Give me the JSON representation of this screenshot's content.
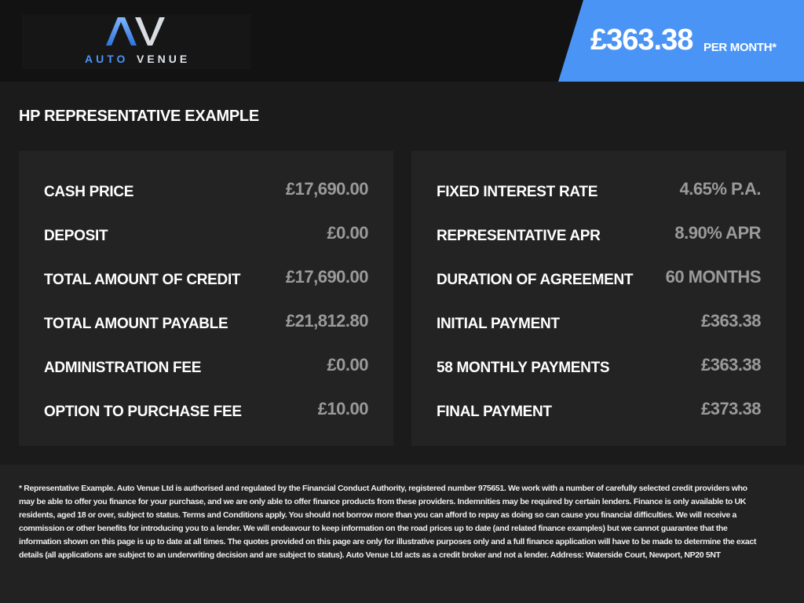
{
  "header": {
    "logo_text": "AUTOVENUE",
    "logo_mark": "AV",
    "price": "£363.38",
    "per_month": "PER MONTH*",
    "accent": "#4a94f5"
  },
  "title": "HP REPRESENTATIVE EXAMPLE",
  "left": [
    {
      "label": "CASH PRICE",
      "value": "£17,690.00"
    },
    {
      "label": "DEPOSIT",
      "value": "£0.00"
    },
    {
      "label": "TOTAL AMOUNT OF CREDIT",
      "value": "£17,690.00"
    },
    {
      "label": "TOTAL AMOUNT PAYABLE",
      "value": "£21,812.80"
    },
    {
      "label": "ADMINISTRATION FEE",
      "value": "£0.00"
    },
    {
      "label": "OPTION TO PURCHASE FEE",
      "value": "£10.00"
    }
  ],
  "right": [
    {
      "label": "FIXED INTEREST RATE",
      "value": "4.65% P.A."
    },
    {
      "label": "REPRESENTATIVE APR",
      "value": "8.90% APR"
    },
    {
      "label": "DURATION OF AGREEMENT",
      "value": "60 MONTHS"
    },
    {
      "label": "INITIAL PAYMENT",
      "value": "£363.38"
    },
    {
      "label": "58 MONTHLY PAYMENTS",
      "value": "£363.38"
    },
    {
      "label": "FINAL PAYMENT",
      "value": "£373.38"
    }
  ],
  "disclaimer": "* Representative Example. Auto Venue Ltd is authorised and regulated by the Financial Conduct Authority, registered number 975651. We work with a number of carefully selected credit providers who may be able to offer you finance for your purchase, and we are only able to offer finance products from these providers. Indemnities may be required by certain lenders. Finance is only available to UK residents, aged 18 or over, subject to status. Terms and Conditions apply. You should not borrow more than you can afford to repay as doing so can cause you financial difficulties. We will receive a commission or other benefits for introducing you to a lender. We will endeavour to keep information on the road prices up to date (and related finance examples) but we cannot guarantee that the information shown on this page is up to date at all times. The quotes provided on this page are only for illustrative purposes only and a full finance application will have to be made to determine the exact details (all applications are subject to an underwriting decision and are subject to status). Auto Venue Ltd acts as a credit broker and not a lender. Address: Waterside Court, Newport, NP20 5NT"
}
